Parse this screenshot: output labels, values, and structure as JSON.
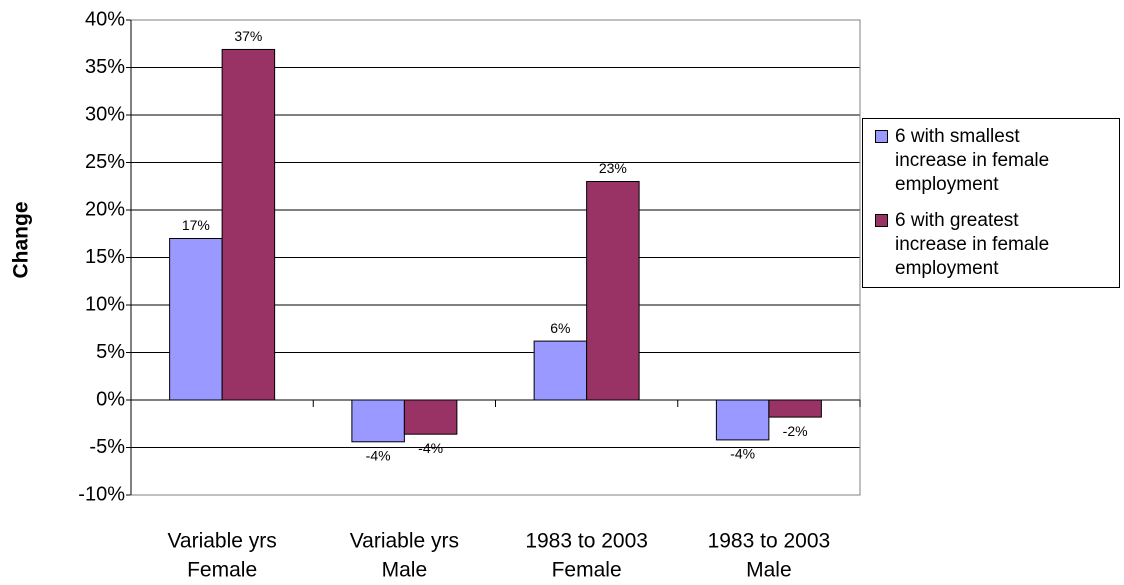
{
  "chart_data": {
    "type": "bar",
    "y_label": "Change",
    "categories": [
      [
        "Variable yrs",
        "Female"
      ],
      [
        "Variable yrs",
        "Male"
      ],
      [
        "1983 to 2003",
        "Female"
      ],
      [
        "1983 to 2003",
        "Male"
      ]
    ],
    "series": [
      {
        "name": "6 with smallest increase in female employment",
        "color": "#9999ff",
        "values": [
          17,
          -4.4,
          6.2,
          -4.2
        ],
        "value_labels": [
          "17%",
          "-4%",
          "6%",
          "-4%"
        ]
      },
      {
        "name": "6 with greatest increase in female employment",
        "color": "#993366",
        "values": [
          36.9,
          -3.6,
          23,
          -1.8
        ],
        "value_labels": [
          "37%",
          "-4%",
          "23%",
          "-2%"
        ]
      }
    ],
    "ylim": [
      -10,
      40
    ],
    "yticks": [
      {
        "value": -10,
        "label": "-10%"
      },
      {
        "value": -5,
        "label": "-5%"
      },
      {
        "value": 0,
        "label": "0%"
      },
      {
        "value": 5,
        "label": "5%"
      },
      {
        "value": 10,
        "label": "10%"
      },
      {
        "value": 15,
        "label": "15%"
      },
      {
        "value": 20,
        "label": "20%"
      },
      {
        "value": 25,
        "label": "25%"
      },
      {
        "value": 30,
        "label": "30%"
      },
      {
        "value": 35,
        "label": "35%"
      },
      {
        "value": 40,
        "label": "40%"
      }
    ],
    "grid": true,
    "legend": "right"
  }
}
